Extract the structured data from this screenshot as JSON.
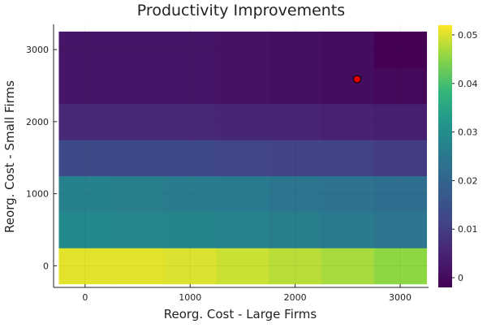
{
  "chart_data": {
    "type": "heatmap",
    "title": "Productivity Improvements",
    "xlabel": "Reorg. Cost - Large Firms",
    "ylabel": "Reorg. Cost - Small Firms",
    "x_centers": [
      0,
      500,
      1000,
      1500,
      2000,
      2500,
      3000
    ],
    "y_centers": [
      0,
      500,
      1000,
      1500,
      2000,
      2500,
      3000
    ],
    "x_ticks": [
      0,
      1000,
      2000,
      3000
    ],
    "y_ticks": [
      0,
      1000,
      2000,
      3000
    ],
    "xlim": [
      -300,
      3270
    ],
    "ylim": [
      -300,
      3350
    ],
    "z": [
      [
        0.0505,
        0.0505,
        0.05,
        0.049,
        0.048,
        0.047,
        0.0455
      ],
      [
        0.029,
        0.0285,
        0.028,
        0.0275,
        0.0265,
        0.0255,
        0.0245
      ],
      [
        0.027,
        0.0265,
        0.026,
        0.0255,
        0.0245,
        0.0235,
        0.0225
      ],
      [
        0.013,
        0.013,
        0.0125,
        0.012,
        0.0115,
        0.011,
        0.01
      ],
      [
        0.006,
        0.006,
        0.0058,
        0.0055,
        0.005,
        0.0045,
        0.004
      ],
      [
        0.002,
        0.002,
        0.0018,
        0.0015,
        0.001,
        0.0005,
        -0.0005
      ],
      [
        0.002,
        0.002,
        0.0018,
        0.0015,
        0.001,
        0.0005,
        -0.002
      ]
    ],
    "colorbar": {
      "min": -0.002,
      "max": 0.052,
      "ticks": [
        0,
        0.01,
        0.02,
        0.03,
        0.04,
        0.05
      ],
      "tick_labels": [
        "0",
        "0.01",
        "0.02",
        "0.03",
        "0.04",
        "0.05"
      ]
    },
    "marker": {
      "x": 2590,
      "y": 2590,
      "color": "#e00000"
    },
    "grid": true,
    "colormap": "viridis"
  }
}
